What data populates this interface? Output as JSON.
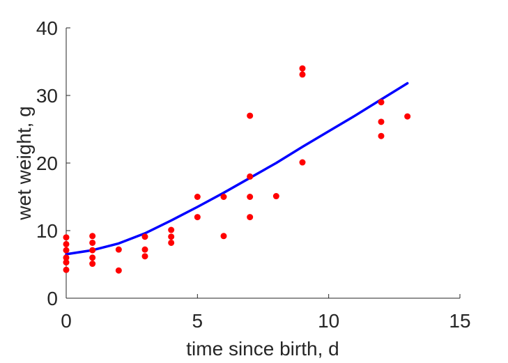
{
  "chart_data": {
    "type": "scatter",
    "title": "",
    "xlabel": "time since birth, d",
    "ylabel": "wet weight, g",
    "xlim": [
      0,
      15
    ],
    "ylim": [
      0,
      40
    ],
    "xticks": [
      0,
      5,
      10,
      15
    ],
    "yticks": [
      0,
      10,
      20,
      30,
      40
    ],
    "grid": false,
    "series": [
      {
        "kind": "scatter",
        "color": "#ff0000",
        "points": [
          [
            0,
            9.0
          ],
          [
            0,
            8.0
          ],
          [
            0,
            7.1
          ],
          [
            0,
            6.0
          ],
          [
            0,
            5.3
          ],
          [
            0,
            4.2
          ],
          [
            1,
            9.2
          ],
          [
            1,
            8.2
          ],
          [
            1,
            7.1
          ],
          [
            1,
            6.0
          ],
          [
            1,
            5.1
          ],
          [
            2,
            7.2
          ],
          [
            2,
            4.1
          ],
          [
            3,
            9.1
          ],
          [
            3,
            7.2
          ],
          [
            3,
            6.2
          ],
          [
            4,
            10.1
          ],
          [
            4,
            9.1
          ],
          [
            4,
            8.2
          ],
          [
            5,
            15.0
          ],
          [
            5,
            12.0
          ],
          [
            6,
            15.0
          ],
          [
            6,
            9.2
          ],
          [
            7,
            27.0
          ],
          [
            7,
            18.0
          ],
          [
            7,
            15.0
          ],
          [
            7,
            12.0
          ],
          [
            8,
            15.1
          ],
          [
            9,
            34.0
          ],
          [
            9,
            33.1
          ],
          [
            9,
            20.1
          ],
          [
            12,
            29.0
          ],
          [
            12,
            26.1
          ],
          [
            12,
            24.0
          ],
          [
            13,
            26.9
          ]
        ]
      },
      {
        "kind": "line",
        "color": "#0000ff",
        "points": [
          [
            0,
            6.5
          ],
          [
            1,
            7.1
          ],
          [
            2,
            8.1
          ],
          [
            3,
            9.6
          ],
          [
            4,
            11.5
          ],
          [
            5,
            13.5
          ],
          [
            6,
            15.6
          ],
          [
            7,
            17.8
          ],
          [
            8,
            20.0
          ],
          [
            9,
            22.4
          ],
          [
            10,
            24.7
          ],
          [
            11,
            27.0
          ],
          [
            12,
            29.4
          ],
          [
            13,
            31.8
          ]
        ]
      }
    ]
  }
}
